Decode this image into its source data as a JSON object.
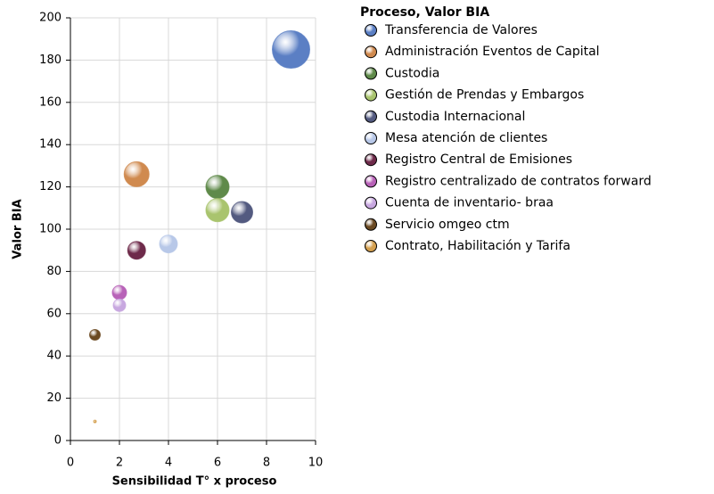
{
  "chart_data": {
    "type": "bubble",
    "xlabel": "Sensibilidad T°  x proceso",
    "ylabel": "Valor BIA",
    "legend_title": "Proceso, Valor BIA",
    "xlim": [
      0,
      10
    ],
    "xticks": [
      0,
      2,
      4,
      6,
      8,
      10
    ],
    "ylim": [
      0,
      200
    ],
    "yticks": [
      0,
      20,
      40,
      60,
      80,
      100,
      120,
      140,
      160,
      180,
      200
    ],
    "grid": true,
    "legend": "right",
    "series": [
      {
        "name": "Transferencia de Valores",
        "color": "#5b7fc4",
        "x": [
          9
        ],
        "values": [
          185
        ],
        "sizes": [
          21
        ]
      },
      {
        "name": "Administración Eventos de Capital",
        "color": "#d08a4f",
        "x": [
          2.7
        ],
        "values": [
          126
        ],
        "sizes": [
          14
        ]
      },
      {
        "name": "Custodia",
        "color": "#5f8a4a",
        "x": [
          6
        ],
        "values": [
          120
        ],
        "sizes": [
          13
        ]
      },
      {
        "name": "Gestión de Prendas y Embargos",
        "color": "#a9c46e",
        "x": [
          6
        ],
        "values": [
          109
        ],
        "sizes": [
          13
        ]
      },
      {
        "name": "Custodia Internacional",
        "color": "#535a80",
        "x": [
          7
        ],
        "values": [
          108
        ],
        "sizes": [
          12
        ]
      },
      {
        "name": "Mesa atención de clientes",
        "color": "#b8c8e8",
        "x": [
          4
        ],
        "values": [
          93
        ],
        "sizes": [
          10
        ]
      },
      {
        "name": "Registro Central de Emisiones",
        "color": "#6e2a4a",
        "x": [
          2.7
        ],
        "values": [
          90
        ],
        "sizes": [
          10
        ]
      },
      {
        "name": "Registro centralizado de contratos forward",
        "color": "#b862b8",
        "x": [
          2
        ],
        "values": [
          70
        ],
        "sizes": [
          8
        ]
      },
      {
        "name": "Cuenta de inventario- braa",
        "color": "#c8a8e0",
        "x": [
          2
        ],
        "values": [
          64
        ],
        "sizes": [
          7
        ]
      },
      {
        "name": "Servicio omgeo ctm",
        "color": "#6b4a22",
        "x": [
          1
        ],
        "values": [
          50
        ],
        "sizes": [
          6
        ]
      },
      {
        "name": "Contrato, Habilitación y Tarifa",
        "color": "#d4a050",
        "x": [
          1
        ],
        "values": [
          9
        ],
        "sizes": [
          1.5
        ]
      }
    ]
  }
}
